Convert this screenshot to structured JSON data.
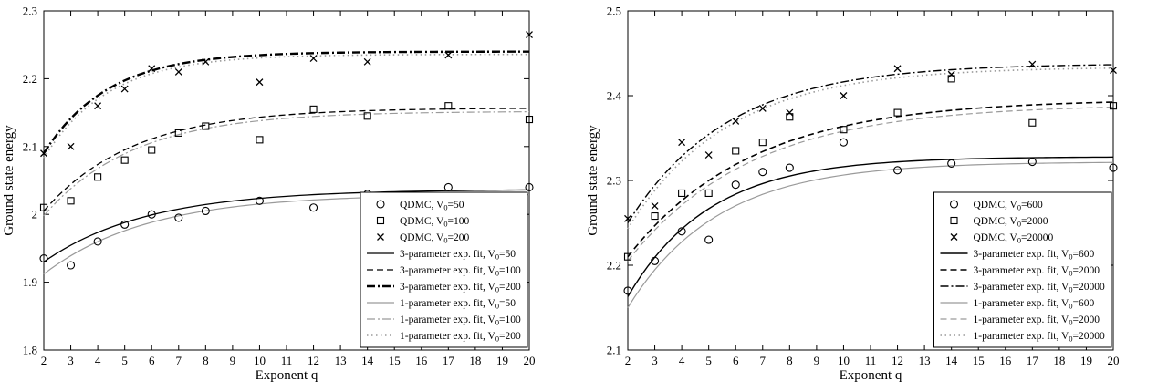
{
  "figure": {
    "background": "#ffffff"
  },
  "chart_data": [
    {
      "type": "scatter",
      "title": "",
      "xlabel": "Exponent q",
      "ylabel": "Ground state energy",
      "xlim": [
        2,
        20
      ],
      "ylim": [
        1.8,
        2.3
      ],
      "xticks": [
        2,
        3,
        4,
        5,
        6,
        7,
        8,
        9,
        10,
        11,
        12,
        13,
        14,
        15,
        16,
        17,
        18,
        19,
        20
      ],
      "yticks": [
        1.8,
        1.9,
        2.0,
        2.1,
        2.2,
        2.3
      ],
      "ytick_labels": [
        "1.8",
        "1.9",
        "2",
        "2.1",
        "2.2",
        "2.3"
      ],
      "grid": false,
      "legend_position": "bottom-right",
      "series": [
        {
          "name": "QDMC, V₀=50",
          "type": "scatter",
          "marker": "circle",
          "color": "#000000",
          "x": [
            2,
            3,
            4,
            5,
            6,
            7,
            8,
            10,
            12,
            14,
            17,
            20
          ],
          "y": [
            1.935,
            1.925,
            1.96,
            1.985,
            2.0,
            1.995,
            2.005,
            2.02,
            2.01,
            2.03,
            2.04,
            2.04
          ]
        },
        {
          "name": "QDMC, V₀=100",
          "type": "scatter",
          "marker": "square",
          "color": "#000000",
          "x": [
            2,
            3,
            4,
            5,
            6,
            7,
            8,
            10,
            12,
            14,
            17,
            20
          ],
          "y": [
            2.01,
            2.02,
            2.055,
            2.08,
            2.095,
            2.12,
            2.13,
            2.11,
            2.155,
            2.145,
            2.16,
            2.14
          ]
        },
        {
          "name": "QDMC, V₀=200",
          "type": "scatter",
          "marker": "x",
          "color": "#000000",
          "x": [
            2,
            3,
            4,
            5,
            6,
            7,
            8,
            10,
            12,
            14,
            17,
            20
          ],
          "y": [
            2.09,
            2.1,
            2.16,
            2.185,
            2.215,
            2.21,
            2.225,
            2.195,
            2.23,
            2.225,
            2.235,
            2.265
          ]
        },
        {
          "name": "3-parameter exp. fit, V₀=50",
          "type": "fit",
          "color": "#000000",
          "style": "solid",
          "width": 1.3,
          "fit": {
            "y_start": 1.93,
            "y_inf": 2.037,
            "rate": 0.26
          }
        },
        {
          "name": "3-parameter exp. fit, V₀=100",
          "type": "fit",
          "color": "#000000",
          "style": "dashed",
          "width": 1.3,
          "fit": {
            "y_start": 2.005,
            "y_inf": 2.157,
            "rate": 0.3
          }
        },
        {
          "name": "3-parameter exp. fit, V₀=200",
          "type": "fit",
          "color": "#000000",
          "style": "dashdot",
          "width": 2.4,
          "fit": {
            "y_start": 2.09,
            "y_inf": 2.24,
            "rate": 0.42
          }
        },
        {
          "name": "1-parameter exp. fit, V₀=50",
          "type": "fit",
          "color": "#9a9a9a",
          "style": "solid",
          "width": 1.2,
          "fit": {
            "y_start": 1.912,
            "y_inf": 2.03,
            "rate": 0.26
          }
        },
        {
          "name": "1-parameter exp. fit, V₀=100",
          "type": "fit",
          "color": "#9a9a9a",
          "style": "dashdot",
          "width": 1.2,
          "fit": {
            "y_start": 1.998,
            "y_inf": 2.152,
            "rate": 0.3
          }
        },
        {
          "name": "1-parameter exp. fit, V₀=200",
          "type": "fit",
          "color": "#9a9a9a",
          "style": "dotted",
          "width": 1.6,
          "fit": {
            "y_start": 2.083,
            "y_inf": 2.236,
            "rate": 0.42
          }
        }
      ]
    },
    {
      "type": "scatter",
      "title": "",
      "xlabel": "Exponent q",
      "ylabel": "Ground state energy",
      "xlim": [
        2,
        20
      ],
      "ylim": [
        2.1,
        2.5
      ],
      "xticks": [
        2,
        3,
        4,
        5,
        6,
        7,
        8,
        9,
        10,
        11,
        12,
        13,
        14,
        15,
        16,
        17,
        18,
        19,
        20
      ],
      "yticks": [
        2.1,
        2.2,
        2.3,
        2.4,
        2.5
      ],
      "ytick_labels": [
        "2.1",
        "2.2",
        "2.3",
        "2.4",
        "2.5"
      ],
      "grid": false,
      "legend_position": "bottom-right",
      "series": [
        {
          "name": "QDMC, V₀=600",
          "type": "scatter",
          "marker": "circle",
          "color": "#000000",
          "x": [
            2,
            3,
            4,
            5,
            6,
            7,
            8,
            10,
            12,
            14,
            17,
            20
          ],
          "y": [
            2.17,
            2.205,
            2.24,
            2.23,
            2.295,
            2.31,
            2.315,
            2.345,
            2.312,
            2.32,
            2.322,
            2.315
          ]
        },
        {
          "name": "QDMC, V₀=2000",
          "type": "scatter",
          "marker": "square",
          "color": "#000000",
          "x": [
            2,
            3,
            4,
            5,
            6,
            7,
            8,
            10,
            12,
            14,
            17,
            20
          ],
          "y": [
            2.21,
            2.258,
            2.285,
            2.285,
            2.335,
            2.345,
            2.375,
            2.36,
            2.38,
            2.42,
            2.368,
            2.388
          ]
        },
        {
          "name": "QDMC, V₀=20000",
          "type": "scatter",
          "marker": "x",
          "color": "#000000",
          "x": [
            2,
            3,
            4,
            5,
            6,
            7,
            8,
            10,
            12,
            14,
            17,
            20
          ],
          "y": [
            2.255,
            2.27,
            2.345,
            2.33,
            2.37,
            2.385,
            2.38,
            2.4,
            2.432,
            2.425,
            2.437,
            2.43
          ]
        },
        {
          "name": "3-parameter exp. fit, V₀=600",
          "type": "fit",
          "color": "#000000",
          "style": "solid",
          "width": 1.4,
          "fit": {
            "y_start": 2.163,
            "y_inf": 2.328,
            "rate": 0.33
          }
        },
        {
          "name": "3-parameter exp. fit, V₀=2000",
          "type": "fit",
          "color": "#000000",
          "style": "dashed",
          "width": 1.6,
          "fit": {
            "y_start": 2.21,
            "y_inf": 2.396,
            "rate": 0.22
          }
        },
        {
          "name": "3-parameter exp. fit, V₀=20000",
          "type": "fit",
          "color": "#000000",
          "style": "dashdot",
          "width": 1.4,
          "fit": {
            "y_start": 2.25,
            "y_inf": 2.438,
            "rate": 0.27
          }
        },
        {
          "name": "1-parameter exp. fit, V₀=600",
          "type": "fit",
          "color": "#9a9a9a",
          "style": "solid",
          "width": 1.2,
          "fit": {
            "y_start": 2.15,
            "y_inf": 2.322,
            "rate": 0.3
          }
        },
        {
          "name": "1-parameter exp. fit, V₀=2000",
          "type": "fit",
          "color": "#9a9a9a",
          "style": "dashed",
          "width": 1.2,
          "fit": {
            "y_start": 2.205,
            "y_inf": 2.39,
            "rate": 0.22
          }
        },
        {
          "name": "1-parameter exp. fit, V₀=20000",
          "type": "fit",
          "color": "#9a9a9a",
          "style": "dotted",
          "width": 1.6,
          "fit": {
            "y_start": 2.243,
            "y_inf": 2.434,
            "rate": 0.27
          }
        }
      ]
    }
  ]
}
